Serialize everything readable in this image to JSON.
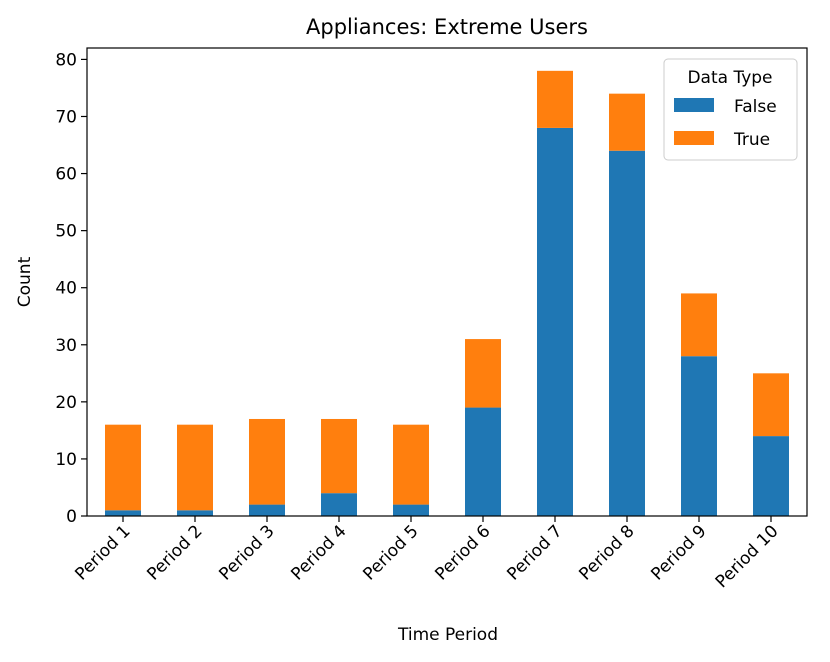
{
  "chart_data": {
    "type": "bar",
    "stacked": true,
    "title": "Appliances: Extreme Users",
    "xlabel": "Time Period",
    "ylabel": "Count",
    "ylim": [
      0,
      82
    ],
    "yticks": [
      0,
      10,
      20,
      30,
      40,
      50,
      60,
      70,
      80
    ],
    "categories": [
      "Period 1",
      "Period 2",
      "Period 3",
      "Period 4",
      "Period 5",
      "Period 6",
      "Period 7",
      "Period 8",
      "Period 9",
      "Period 10"
    ],
    "series": [
      {
        "name": "False",
        "color": "#1f77b4",
        "values": [
          1,
          1,
          2,
          4,
          2,
          19,
          68,
          64,
          28,
          14
        ]
      },
      {
        "name": "True",
        "color": "#ff7f0e",
        "values": [
          15,
          15,
          15,
          13,
          14,
          12,
          10,
          10,
          11,
          11
        ]
      }
    ],
    "legend": {
      "title": "Data Type",
      "placement": "top-right"
    },
    "grid": false
  }
}
